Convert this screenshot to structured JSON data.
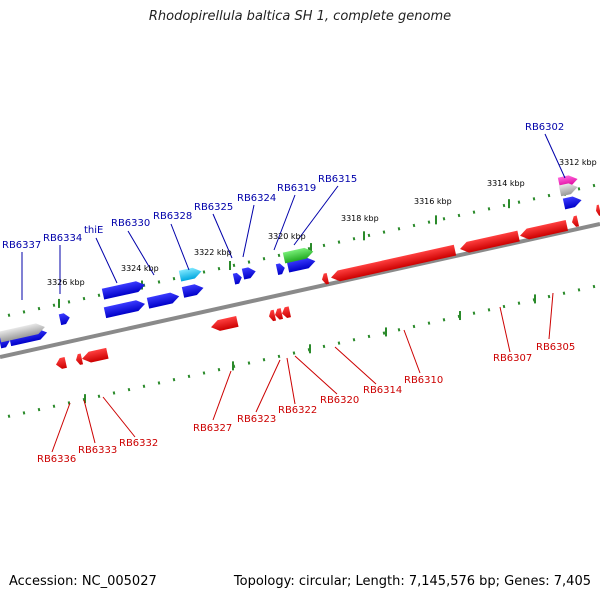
{
  "title": "Rhodopirellula baltica SH 1, complete genome",
  "footer": {
    "accession": "Accession: NC_005027",
    "summary": "Topology: circular; Length: 7,145,576 bp; Genes: 7,405"
  },
  "colors": {
    "forward_strand": "#0000ee",
    "reverse_strand": "#ee0000",
    "forward_label": "#0000aa",
    "reverse_label": "#cc0000",
    "backbone": "#808080",
    "ticks": "#2a8a2a",
    "tick_label": "#000000",
    "cyan_feature": "#00c0e8",
    "green_feature": "#33cc33",
    "magenta_feature": "#ff33cc",
    "grey_feature": "#b0b0b0"
  },
  "ticks": {
    "forward": [
      "3326 kbp",
      "3324 kbp",
      "3322 kbp",
      "3320 kbp",
      "3318 kbp",
      "3316 kbp",
      "3314 kbp",
      "3312 kbp"
    ]
  },
  "gene_labels": {
    "forward": [
      "RB6337",
      "RB6334",
      "thiE",
      "RB6330",
      "RB6328",
      "RB6325",
      "RB6324",
      "RB6319",
      "RB6315",
      "RB6302"
    ],
    "reverse": [
      "RB6336",
      "RB6333",
      "RB6332",
      "RB6327",
      "RB6323",
      "RB6322",
      "RB6320",
      "RB6314",
      "RB6310",
      "RB6307",
      "RB6305"
    ]
  }
}
